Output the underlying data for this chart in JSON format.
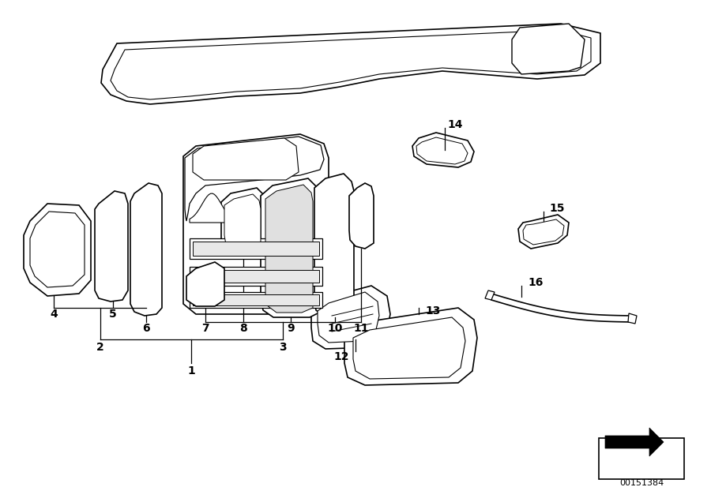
{
  "background_color": "#ffffff",
  "part_number": "00151384",
  "label_color": "#000000",
  "line_color": "#000000",
  "edge_color": "#000000",
  "face_color": "#ffffff",
  "figsize": [
    9.0,
    6.36
  ],
  "dpi": 100,
  "lw": 1.2
}
